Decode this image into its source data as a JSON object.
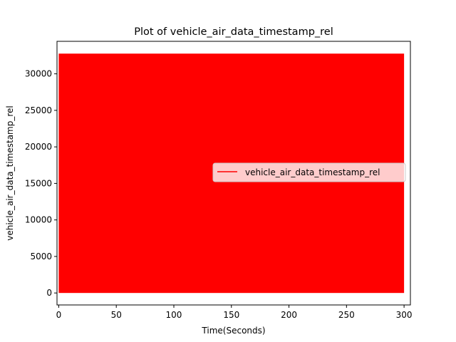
{
  "chart_data": {
    "type": "line",
    "title": "Plot of vehicle_air_data_timestamp_rel",
    "xlabel": "Time(Seconds)",
    "ylabel": "vehicle_air_data_timestamp_rel",
    "xlim": [
      -1.5,
      305.5
    ],
    "ylim": [
      -1640,
      34450
    ],
    "xticks": [
      0,
      50,
      100,
      150,
      200,
      250,
      300
    ],
    "yticks": [
      0,
      5000,
      10000,
      15000,
      20000,
      25000,
      30000
    ],
    "grid": false,
    "legend_position": "center-right",
    "series": [
      {
        "name": "vehicle_air_data_timestamp_rel",
        "color": "#ff0000",
        "pattern": "dense oscillation between 0 and 32767 across the whole time range",
        "x_range": [
          0,
          300
        ],
        "y_min": 0,
        "y_max": 32767
      }
    ]
  }
}
